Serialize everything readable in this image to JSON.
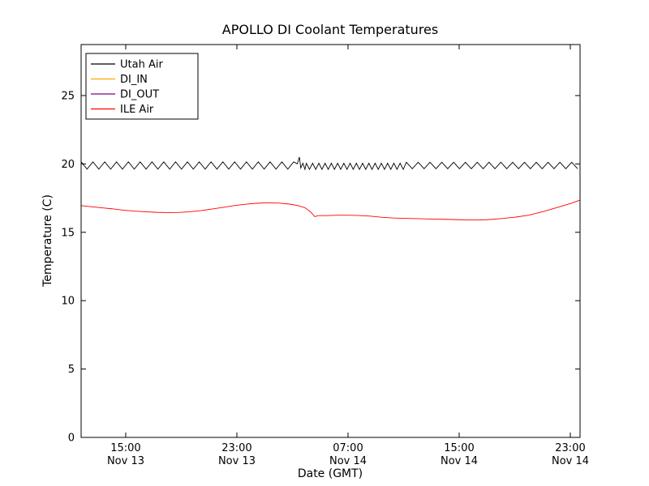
{
  "window_title": "APOLLO DI Coolant Temperatures",
  "chart_data": {
    "type": "line",
    "title": "APOLLO DI Coolant Temperatures",
    "xlabel": "Date (GMT)",
    "ylabel": "Temperature (C)",
    "x_unit": "hours since Nov 13 00:00 GMT",
    "xlim": [
      11.79,
      47.7
    ],
    "ylim": [
      0,
      28.73
    ],
    "grid": false,
    "y_ticks": [
      0,
      5,
      10,
      15,
      20,
      25
    ],
    "x_ticks": [
      {
        "value": 15,
        "time": "15:00",
        "date": "Nov 13"
      },
      {
        "value": 23,
        "time": "23:00",
        "date": "Nov 13"
      },
      {
        "value": 31,
        "time": "07:00",
        "date": "Nov 14"
      },
      {
        "value": 39,
        "time": "15:00",
        "date": "Nov 14"
      },
      {
        "value": 47,
        "time": "23:00",
        "date": "Nov 14"
      }
    ],
    "legend": {
      "position": "upper-left",
      "entries": [
        {
          "label": "Utah Air",
          "color": "#000000"
        },
        {
          "label": "DI_IN",
          "color": "#ffa500"
        },
        {
          "label": "DI_OUT",
          "color": "#800080"
        },
        {
          "label": "ILE Air",
          "color": "#ff0000"
        }
      ]
    },
    "series": [
      {
        "name": "Utah Air",
        "color": "#000000",
        "description": "sawtooth oscillation around 19.9 C; faster oscillation burst between ~04:00 and ~11:00 Nov 14 with a spike to ~20.5 C at ~03:30 Nov 14",
        "segments": [
          {
            "zigzag": {
              "t0": 11.79,
              "t1": 27.3,
              "period": 0.85,
              "high": 20.15,
              "low": 19.62
            }
          },
          {
            "points": [
              [
                27.35,
                20.0
              ],
              [
                27.5,
                20.5
              ],
              [
                27.6,
                19.7
              ],
              [
                27.75,
                20.05
              ],
              [
                27.9,
                19.6
              ]
            ]
          },
          {
            "zigzag": {
              "t0": 28.0,
              "t1": 35.0,
              "period": 0.45,
              "high": 20.05,
              "low": 19.6
            }
          },
          {
            "zigzag": {
              "t0": 35.2,
              "t1": 47.7,
              "period": 0.85,
              "high": 20.12,
              "low": 19.65
            }
          }
        ]
      },
      {
        "name": "DI_IN",
        "color": "#ffa500",
        "description": "listed in legend; no visible data in plotted range",
        "segments": []
      },
      {
        "name": "DI_OUT",
        "color": "#800080",
        "description": "listed in legend; no visible data in plotted range",
        "segments": []
      },
      {
        "name": "ILE Air",
        "color": "#ff0000",
        "description": "smooth curve between ~15.9 and ~17.35 C",
        "segments": [
          {
            "points": [
              [
                11.79,
                16.95
              ],
              [
                12.5,
                16.87
              ],
              [
                13.2,
                16.8
              ],
              [
                14.0,
                16.72
              ],
              [
                14.8,
                16.62
              ],
              [
                15.6,
                16.55
              ],
              [
                16.4,
                16.5
              ],
              [
                17.2,
                16.46
              ],
              [
                18.0,
                16.44
              ],
              [
                18.8,
                16.45
              ],
              [
                19.6,
                16.5
              ],
              [
                20.4,
                16.58
              ],
              [
                21.2,
                16.7
              ],
              [
                22.0,
                16.82
              ],
              [
                22.8,
                16.95
              ],
              [
                23.6,
                17.05
              ],
              [
                24.4,
                17.12
              ],
              [
                25.2,
                17.16
              ],
              [
                26.0,
                17.14
              ],
              [
                26.8,
                17.06
              ],
              [
                27.4,
                16.95
              ],
              [
                27.9,
                16.8
              ],
              [
                28.3,
                16.5
              ],
              [
                28.6,
                16.15
              ],
              [
                28.9,
                16.22
              ],
              [
                29.4,
                16.22
              ],
              [
                30.2,
                16.25
              ],
              [
                31.0,
                16.25
              ],
              [
                31.8,
                16.23
              ],
              [
                32.6,
                16.18
              ],
              [
                33.4,
                16.1
              ],
              [
                34.2,
                16.05
              ],
              [
                35.0,
                16.02
              ],
              [
                36.0,
                16.0
              ],
              [
                37.0,
                15.97
              ],
              [
                38.0,
                15.95
              ],
              [
                39.0,
                15.92
              ],
              [
                40.0,
                15.9
              ],
              [
                41.0,
                15.92
              ],
              [
                42.0,
                16.0
              ],
              [
                43.0,
                16.1
              ],
              [
                44.0,
                16.25
              ],
              [
                45.0,
                16.5
              ],
              [
                46.0,
                16.8
              ],
              [
                47.0,
                17.1
              ],
              [
                47.7,
                17.35
              ]
            ]
          }
        ]
      }
    ]
  }
}
